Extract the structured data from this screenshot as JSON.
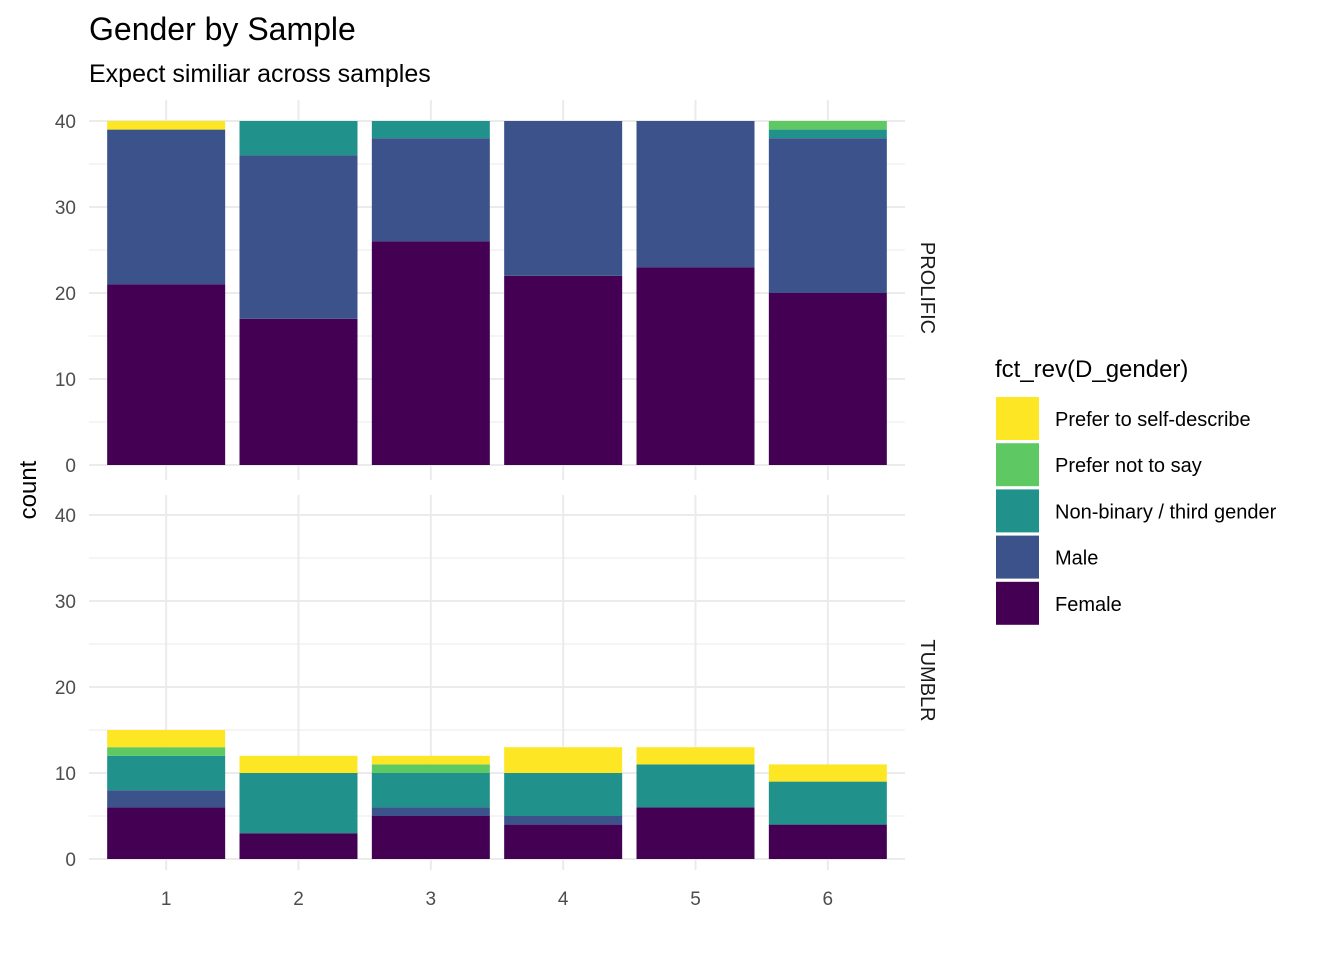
{
  "chart_data": {
    "type": "bar",
    "stacked": true,
    "title": "Gender by Sample",
    "subtitle": "Expect similiar across samples",
    "xlabel": "",
    "ylabel": "count",
    "ylim": [
      0,
      40
    ],
    "yticks": [
      0,
      10,
      20,
      30,
      40
    ],
    "categories": [
      "1",
      "2",
      "3",
      "4",
      "5",
      "6"
    ],
    "grid": true,
    "facets": [
      {
        "label": "PROLIFIC",
        "series": [
          {
            "name": "Female",
            "values": [
              21,
              17,
              26,
              22,
              23,
              20
            ]
          },
          {
            "name": "Male",
            "values": [
              18,
              19,
              12,
              18,
              17,
              18
            ]
          },
          {
            "name": "Non-binary / third gender",
            "values": [
              0,
              4,
              2,
              0,
              0,
              1
            ]
          },
          {
            "name": "Prefer not to say",
            "values": [
              0,
              0,
              0,
              0,
              0,
              1
            ]
          },
          {
            "name": "Prefer to self-describe",
            "values": [
              1,
              0,
              0,
              0,
              0,
              0
            ]
          }
        ]
      },
      {
        "label": "TUMBLR",
        "series": [
          {
            "name": "Female",
            "values": [
              6,
              3,
              5,
              4,
              6,
              4
            ]
          },
          {
            "name": "Male",
            "values": [
              2,
              0,
              1,
              1,
              0,
              0
            ]
          },
          {
            "name": "Non-binary / third gender",
            "values": [
              4,
              7,
              4,
              5,
              5,
              5
            ]
          },
          {
            "name": "Prefer not to say",
            "values": [
              1,
              0,
              1,
              0,
              0,
              0
            ]
          },
          {
            "name": "Prefer to self-describe",
            "values": [
              2,
              2,
              1,
              3,
              2,
              2
            ]
          }
        ]
      }
    ],
    "legend": {
      "title": "fct_rev(D_gender)",
      "position": "right",
      "entries": [
        {
          "name": "Prefer to self-describe",
          "color": "#FDE725"
        },
        {
          "name": "Prefer not to say",
          "color": "#5EC962"
        },
        {
          "name": "Non-binary / third gender",
          "color": "#21918C"
        },
        {
          "name": "Male",
          "color": "#3B528B"
        },
        {
          "name": "Female",
          "color": "#440154"
        }
      ]
    },
    "colors": {
      "Female": "#440154",
      "Male": "#3B528B",
      "Non-binary / third gender": "#21918C",
      "Prefer not to say": "#5EC962",
      "Prefer to self-describe": "#FDE725"
    }
  }
}
